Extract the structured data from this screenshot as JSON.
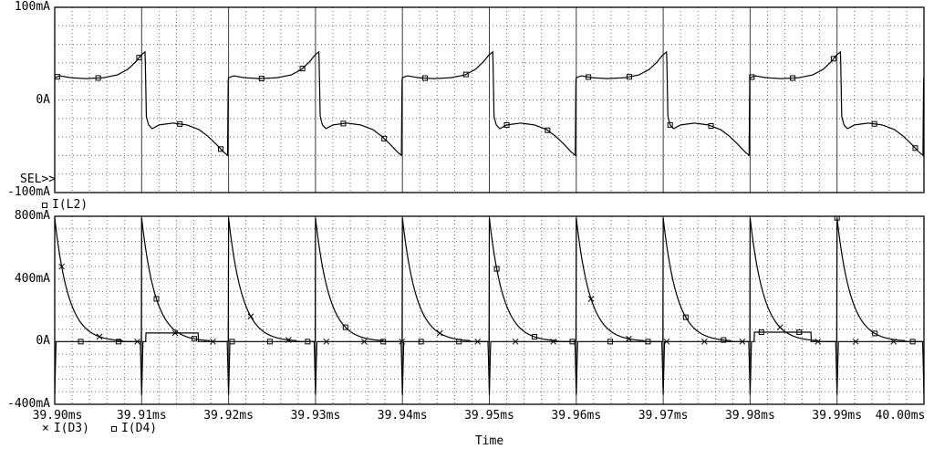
{
  "window": {
    "bg": "#ffffff",
    "fg": "#000000"
  },
  "sel_label": "SEL>>",
  "time_axis": {
    "label": "Time",
    "start_ms": 39.9,
    "end_ms": 40.0,
    "minor_per_major": 5,
    "ticks": [
      {
        "v": 39.9,
        "label": "39.90ms"
      },
      {
        "v": 39.91,
        "label": "39.91ms"
      },
      {
        "v": 39.92,
        "label": "39.92ms"
      },
      {
        "v": 39.93,
        "label": "39.93ms"
      },
      {
        "v": 39.94,
        "label": "39.94ms"
      },
      {
        "v": 39.95,
        "label": "39.95ms"
      },
      {
        "v": 39.96,
        "label": "39.96ms"
      },
      {
        "v": 39.97,
        "label": "39.97ms"
      },
      {
        "v": 39.98,
        "label": "39.98ms"
      },
      {
        "v": 39.99,
        "label": "39.99ms"
      },
      {
        "v": 40.0,
        "label": "40.00ms"
      }
    ]
  },
  "chart_data": [
    {
      "type": "line",
      "position": "top",
      "title": "",
      "ylim": [
        -100,
        100
      ],
      "y_minor_step": 20,
      "grid": "dashed",
      "y_ticks": [
        {
          "v": 100,
          "label": "100mA"
        },
        {
          "v": 0,
          "label": "0A"
        },
        {
          "v": -100,
          "label": "-100mA"
        }
      ],
      "legend": [
        {
          "symbol": "square",
          "label": "I(L2)"
        }
      ],
      "series": [
        {
          "name": "I(L2)",
          "marker": "square",
          "kind": "keypoint-cycle",
          "period_ms": 0.02,
          "phase_start_ms": 39.9,
          "cycle_keypoints": [
            [
              0.0,
              24
            ],
            [
              0.03,
              26
            ],
            [
              0.09,
              24
            ],
            [
              0.18,
              23
            ],
            [
              0.28,
              24
            ],
            [
              0.36,
              27
            ],
            [
              0.42,
              33
            ],
            [
              0.465,
              41
            ],
            [
              0.495,
              48
            ],
            [
              0.52,
              52
            ],
            [
              0.527,
              -18
            ],
            [
              0.54,
              -27
            ],
            [
              0.56,
              -31
            ],
            [
              0.6,
              -27
            ],
            [
              0.68,
              -25
            ],
            [
              0.76,
              -27
            ],
            [
              0.83,
              -32
            ],
            [
              0.88,
              -39
            ],
            [
              0.93,
              -48
            ],
            [
              0.97,
              -56
            ],
            [
              0.995,
              -60
            ],
            [
              0.997,
              20
            ],
            [
              1.0,
              24
            ]
          ],
          "marker_start_ms": 39.9003,
          "marker_step_ms": 0.0047
        }
      ]
    },
    {
      "type": "line",
      "position": "bottom",
      "title": "",
      "ylim": [
        -400,
        800
      ],
      "y_minor_step": 80,
      "grid": "dashed",
      "y_ticks": [
        {
          "v": 800,
          "label": "800mA"
        },
        {
          "v": 400,
          "label": "400mA"
        },
        {
          "v": 0,
          "label": "0A"
        },
        {
          "v": -400,
          "label": "-400mA"
        }
      ],
      "legend": [
        {
          "symbol": "x",
          "label": "I(D3)"
        },
        {
          "symbol": "square",
          "label": "I(D4)"
        }
      ],
      "series": [
        {
          "name": "I(D3)",
          "marker": "x",
          "kind": "diode",
          "turn_on_times_ms": [
            39.9,
            39.92,
            39.94,
            39.96,
            39.98
          ],
          "peak_mA": 790,
          "decay_tau_ms": 0.0016,
          "conduction_ms": 0.0078,
          "reverse_spike_mA": -340,
          "reverse_spike_width_ms": 0.00015,
          "reverse_spike_times_ms": [
            39.91,
            39.93,
            39.95,
            39.97,
            39.99
          ],
          "extra_pulses": [
            {
              "start_ms": 39.9105,
              "end_ms": 39.9165,
              "level_mA": 55
            }
          ],
          "marker_start_ms": 39.9008,
          "marker_step_ms": 0.00435
        },
        {
          "name": "I(D4)",
          "marker": "square",
          "kind": "diode",
          "turn_on_times_ms": [
            39.91,
            39.93,
            39.95,
            39.97,
            39.99
          ],
          "peak_mA": 790,
          "decay_tau_ms": 0.0016,
          "conduction_ms": 0.0078,
          "reverse_spike_mA": -340,
          "reverse_spike_width_ms": 0.00015,
          "reverse_spike_times_ms": [
            39.9,
            39.92,
            39.94,
            39.96,
            39.98,
            40.0
          ],
          "extra_pulses": [
            {
              "start_ms": 39.9805,
              "end_ms": 39.987,
              "level_mA": 60
            }
          ],
          "marker_start_ms": 39.903,
          "marker_step_ms": 0.00435
        }
      ]
    }
  ]
}
